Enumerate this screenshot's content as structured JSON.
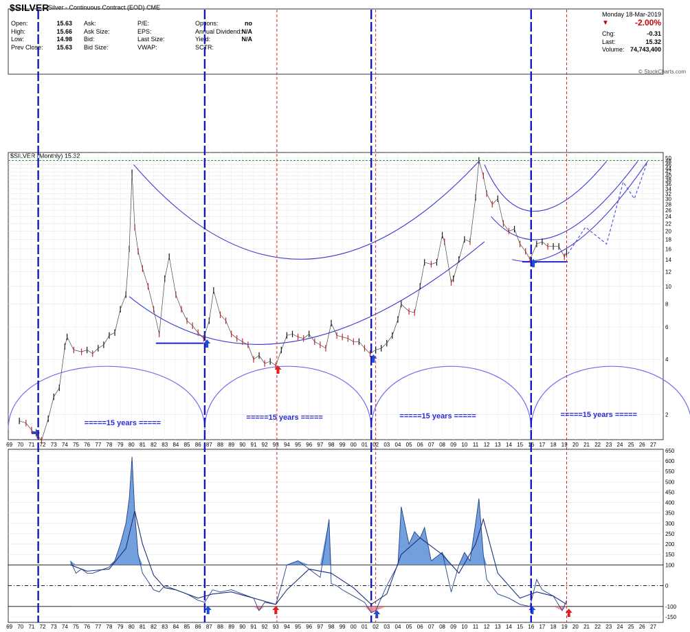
{
  "header": {
    "symbol": "$SILVER",
    "description": "Silver - Continuous Contract (EOD)",
    "exchange": "CME",
    "date": "Monday 18-Mar-2019",
    "quote_left": [
      {
        "label": "Open:",
        "value": "15.63"
      },
      {
        "label": "High:",
        "value": "15.66"
      },
      {
        "label": "Low:",
        "value": "14.98"
      },
      {
        "label": "Prev Close:",
        "value": "15.63"
      }
    ],
    "quote_mid": [
      {
        "label": "Ask:",
        "value": ""
      },
      {
        "label": "Ask Size:",
        "value": ""
      },
      {
        "label": "Bid:",
        "value": ""
      },
      {
        "label": "Bid Size:",
        "value": ""
      }
    ],
    "quote_mid2": [
      {
        "label": "P/E:",
        "value": ""
      },
      {
        "label": "EPS:",
        "value": ""
      },
      {
        "label": "Last Size:",
        "value": ""
      },
      {
        "label": "VWAP:",
        "value": ""
      }
    ],
    "quote_mid3": [
      {
        "label": "Options:",
        "value": "no"
      },
      {
        "label": "Annual Dividend:",
        "value": "N/A"
      },
      {
        "label": "Yield:",
        "value": "N/A"
      },
      {
        "label": "SCTR:",
        "value": ""
      }
    ],
    "change_pct": "-2.00%",
    "quote_right": [
      {
        "label": "Chg:",
        "value": "-0.31"
      },
      {
        "label": "Last:",
        "value": "15.32"
      },
      {
        "label": "Volume:",
        "value": "74,743,400"
      }
    ],
    "copyright": "© StockCharts.com"
  },
  "chart_data": [
    {
      "type": "line",
      "title": "$SILVER (Monthly) 15.32",
      "legend_marker": "",
      "yscale": "log",
      "ylim": [
        1.5,
        50
      ],
      "y_ticks": [
        2,
        4,
        6,
        8,
        10,
        12,
        14,
        16,
        18,
        20,
        22,
        24,
        26,
        28,
        30,
        32,
        34,
        36,
        38,
        40,
        42,
        44,
        46,
        48,
        50
      ],
      "x_ticks": [
        "69",
        "70",
        "71",
        "72",
        "73",
        "74",
        "75",
        "76",
        "77",
        "78",
        "79",
        "80",
        "81",
        "82",
        "83",
        "84",
        "85",
        "86",
        "87",
        "88",
        "89",
        "90",
        "91",
        "92",
        "93",
        "94",
        "95",
        "96",
        "97",
        "98",
        "99",
        "00",
        "01",
        "02",
        "03",
        "04",
        "05",
        "06",
        "07",
        "08",
        "09",
        "10",
        "11",
        "12",
        "13",
        "14",
        "15",
        "16",
        "17",
        "18",
        "19",
        "20",
        "21",
        "22",
        "23",
        "24",
        "25",
        "26",
        "27"
      ],
      "series": [
        {
          "x": [
            1969.9,
            1970.5,
            1971.0,
            1971.5,
            1971.9,
            1972.5,
            1973.0,
            1973.5,
            1974.0,
            1974.2,
            1974.8,
            1975.5,
            1976.0,
            1976.5,
            1977.0,
            1977.5,
            1978.0,
            1978.5,
            1979.0,
            1979.5,
            1979.8,
            1980.05,
            1980.3,
            1980.6,
            1981.0,
            1981.5,
            1982.0,
            1982.5,
            1983.0,
            1983.4,
            1984.0,
            1984.5,
            1985.0,
            1985.5,
            1986.0,
            1986.5,
            1987.0,
            1987.4,
            1988.0,
            1988.5,
            1989.0,
            1989.5,
            1990.0,
            1990.5,
            1991.0,
            1991.5,
            1992.0,
            1992.5,
            1993.0,
            1993.5,
            1994.0,
            1994.5,
            1995.0,
            1995.5,
            1996.0,
            1996.5,
            1997.0,
            1997.5,
            1998.0,
            1998.5,
            1999.0,
            1999.5,
            2000.0,
            2000.5,
            2001.0,
            2001.5,
            2002.0,
            2002.5,
            2003.0,
            2003.5,
            2004.0,
            2004.3,
            2005.0,
            2005.5,
            2006.0,
            2006.4,
            2007.0,
            2007.5,
            2008.0,
            2008.2,
            2008.8,
            2009.0,
            2009.5,
            2010.0,
            2010.5,
            2011.0,
            2011.3,
            2011.7,
            2012.0,
            2012.5,
            2013.0,
            2013.5,
            2014.0,
            2014.5,
            2015.0,
            2015.5,
            2015.9,
            2016.5,
            2017.0,
            2017.5,
            2018.0,
            2018.5,
            2019.0,
            2019.2
          ],
          "values": [
            1.85,
            1.8,
            1.65,
            1.55,
            1.45,
            1.9,
            2.5,
            2.8,
            4.7,
            5.3,
            4.5,
            4.4,
            4.5,
            4.3,
            4.6,
            4.8,
            5.4,
            5.6,
            7.5,
            9.0,
            16.0,
            41.5,
            21.0,
            15.5,
            12.5,
            10.0,
            7.5,
            5.5,
            11.0,
            14.5,
            9.0,
            7.5,
            6.5,
            6.1,
            5.6,
            5.2,
            6.5,
            9.5,
            7.0,
            6.5,
            5.5,
            5.2,
            5.0,
            4.8,
            4.0,
            4.2,
            3.8,
            3.9,
            3.7,
            4.5,
            5.4,
            5.5,
            5.3,
            5.2,
            5.5,
            5.0,
            4.8,
            4.6,
            6.3,
            5.4,
            5.3,
            5.2,
            5.0,
            5.0,
            4.6,
            4.3,
            4.5,
            4.6,
            4.9,
            5.4,
            6.6,
            8.0,
            7.3,
            7.2,
            10.0,
            13.5,
            13.2,
            13.5,
            19.0,
            17.5,
            10.5,
            11.0,
            14.0,
            18.0,
            17.5,
            30.5,
            48.5,
            40.0,
            32.0,
            28.0,
            30.0,
            22.0,
            20.0,
            20.5,
            17.0,
            15.5,
            14.0,
            17.0,
            17.5,
            16.5,
            16.5,
            16.5,
            14.5,
            15.32
          ]
        }
      ],
      "annotations": [
        "=====15 years =====",
        "=====15 years =====",
        "=====15 years =====",
        "=====15 years ====="
      ],
      "cycle_lines_blue_x": [
        1971.6,
        1986.6,
        2001.6,
        2016.0
      ],
      "cycle_lines_red_x": [
        1993.1,
        2002.0,
        2019.2
      ]
    },
    {
      "type": "area",
      "title": "",
      "ylim": [
        -170,
        650
      ],
      "y_ticks": [
        -150,
        -100,
        0,
        100,
        150,
        200,
        250,
        300,
        350,
        400,
        450,
        500,
        550,
        600,
        650
      ],
      "reference_lines": [
        100,
        0,
        -100
      ],
      "series": [
        {
          "x": [
            1974.5,
            1975.0,
            1975.5,
            1976.0,
            1976.5,
            1977.0,
            1977.5,
            1978.0,
            1978.5,
            1979.0,
            1979.5,
            1979.8,
            1980.05,
            1980.3,
            1980.6,
            1981.0,
            1981.5,
            1982.0,
            1982.5,
            1983.0,
            1983.5,
            1984.0,
            1985.0,
            1986.0,
            1986.6,
            1987.3,
            1988.0,
            1989.0,
            1990.0,
            1991.0,
            1991.5,
            1992.0,
            1993.0,
            1993.5,
            1994.0,
            1995.0,
            1996.0,
            1997.0,
            1997.8,
            1998.0,
            1998.5,
            1999.0,
            2000.0,
            2001.0,
            2001.6,
            2002.0,
            2003.0,
            2004.0,
            2004.3,
            2005.0,
            2005.5,
            2006.0,
            2006.4,
            2007.0,
            2008.0,
            2008.8,
            2009.5,
            2010.0,
            2010.5,
            2011.0,
            2011.3,
            2011.7,
            2012.0,
            2013.0,
            2014.0,
            2015.0,
            2015.9,
            2016.5,
            2017.0,
            2018.0,
            2018.8,
            2019.2
          ],
          "values": [
            120,
            60,
            80,
            60,
            60,
            70,
            80,
            90,
            120,
            200,
            300,
            420,
            620,
            350,
            150,
            60,
            20,
            -20,
            -30,
            0,
            -10,
            -20,
            -40,
            -70,
            -80,
            -20,
            -30,
            -20,
            -40,
            -60,
            -120,
            -80,
            -90,
            0,
            100,
            120,
            80,
            40,
            320,
            10,
            0,
            -20,
            -50,
            -80,
            -130,
            -120,
            0,
            100,
            380,
            200,
            260,
            230,
            280,
            120,
            160,
            -30,
            100,
            160,
            120,
            300,
            420,
            150,
            30,
            -40,
            -60,
            -90,
            -100,
            30,
            -20,
            -50,
            -120,
            -70
          ]
        },
        {
          "x": [
            1974.5,
            1976.0,
            1978.0,
            1979.5,
            1980.3,
            1981.0,
            1982.0,
            1983.0,
            1984.0,
            1986.0,
            1987.3,
            1989.0,
            1991.0,
            1993.0,
            1994.0,
            1996.0,
            1998.0,
            2000.0,
            2001.6,
            2003.0,
            2004.3,
            2006.0,
            2008.0,
            2009.5,
            2011.0,
            2011.7,
            2013.0,
            2015.0,
            2016.5,
            2018.0,
            2019.2
          ],
          "values": [
            100,
            70,
            80,
            180,
            360,
            200,
            50,
            -10,
            -20,
            -60,
            -40,
            -30,
            -60,
            -90,
            -20,
            80,
            60,
            -10,
            -90,
            -40,
            150,
            230,
            150,
            60,
            200,
            320,
            60,
            -60,
            -30,
            -50,
            -90
          ]
        }
      ]
    }
  ]
}
